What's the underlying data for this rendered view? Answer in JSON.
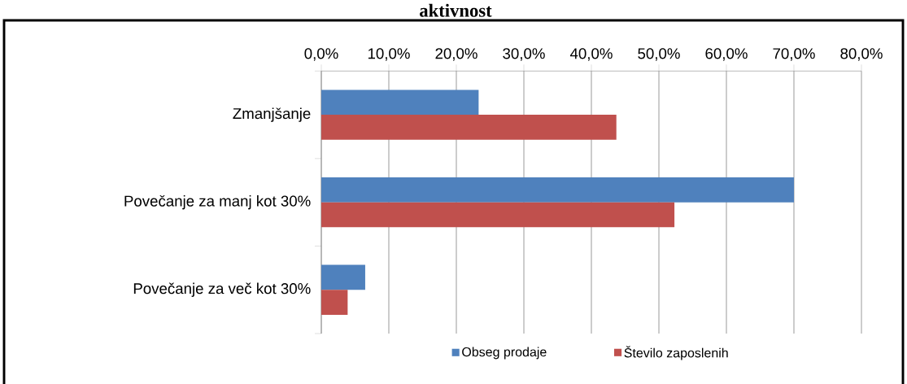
{
  "chart_data": {
    "type": "bar",
    "orientation": "horizontal",
    "title": "aktivnost",
    "categories": [
      "Zmanjšanje",
      "Povečanje za manj kot 30%",
      "Povečanje za več kot 30%"
    ],
    "series": [
      {
        "name": "Obseg prodaje",
        "color": "#4f81bd",
        "values": [
          23.3,
          70.0,
          6.5
        ]
      },
      {
        "name": "Število zaposlenih",
        "color": "#c0504d",
        "values": [
          43.7,
          52.3,
          3.9
        ]
      }
    ],
    "xlim": [
      0,
      80
    ],
    "xticks": [
      {
        "value": 0,
        "label": "0,0%"
      },
      {
        "value": 10,
        "label": "10,0%"
      },
      {
        "value": 20,
        "label": "20,0%"
      },
      {
        "value": 30,
        "label": "30,0%"
      },
      {
        "value": 40,
        "label": "40,0%"
      },
      {
        "value": 50,
        "label": "50,0%"
      },
      {
        "value": 60,
        "label": "60,0%"
      },
      {
        "value": 70,
        "label": "70,0%"
      },
      {
        "value": 80,
        "label": "80,0%"
      }
    ],
    "grid": "x",
    "legend": "bottom"
  }
}
